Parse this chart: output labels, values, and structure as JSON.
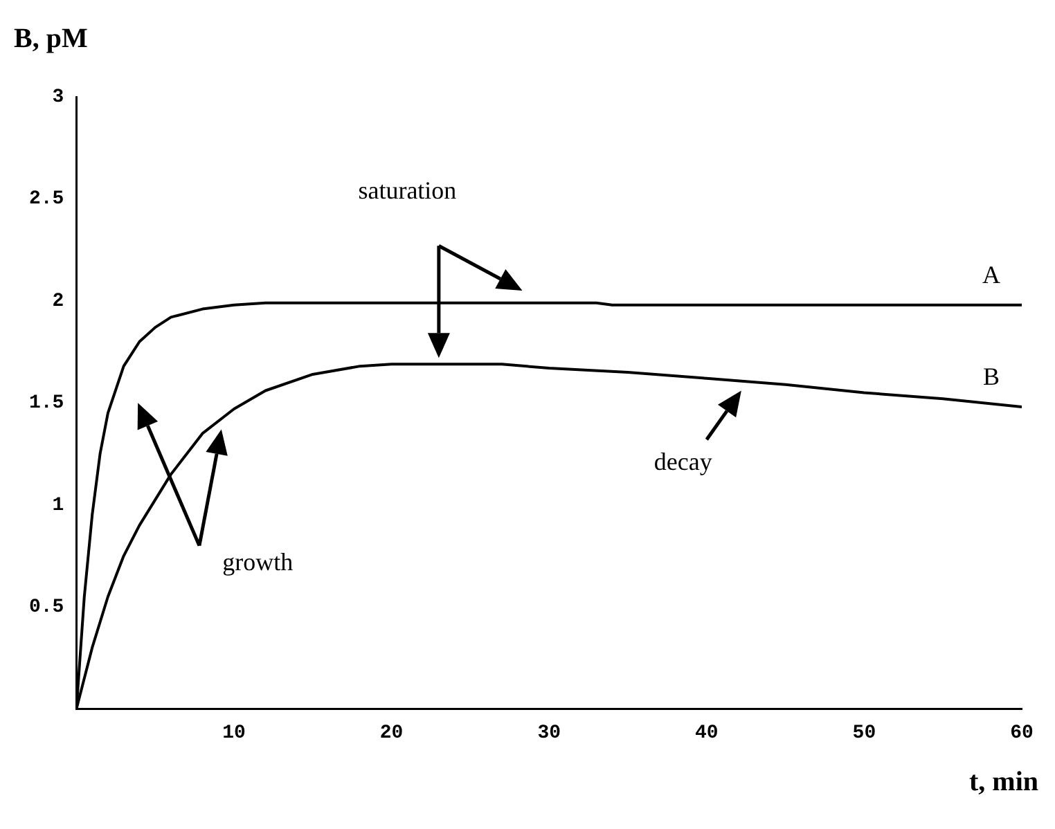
{
  "chart_data": {
    "type": "line",
    "xlabel": "t, min",
    "ylabel": "B, pM",
    "annotations": [
      "saturation",
      "growth",
      "decay"
    ],
    "xlim": [
      0,
      60
    ],
    "xticks": [
      10,
      20,
      30,
      40,
      50,
      60
    ],
    "ylim": [
      0,
      3
    ],
    "yticks": [
      0.5,
      1,
      1.5,
      2,
      2.5,
      3
    ],
    "grid": false,
    "legend": false,
    "marker": "none",
    "line_style": "solid",
    "series": [
      {
        "name": "A",
        "color": "#000000",
        "x": [
          0,
          0.5,
          1,
          1.5,
          2,
          3,
          4,
          5,
          6,
          8,
          10,
          12,
          20,
          33,
          34,
          45,
          60
        ],
        "values": [
          0,
          0.55,
          0.95,
          1.25,
          1.45,
          1.68,
          1.8,
          1.87,
          1.92,
          1.96,
          1.98,
          1.99,
          1.99,
          1.99,
          1.98,
          1.98,
          1.98
        ]
      },
      {
        "name": "B",
        "color": "#000000",
        "x": [
          0,
          1,
          2,
          3,
          4,
          6,
          8,
          10,
          12,
          15,
          18,
          20,
          27,
          30,
          35,
          40,
          45,
          50,
          55,
          60
        ],
        "values": [
          0,
          0.3,
          0.55,
          0.75,
          0.9,
          1.15,
          1.35,
          1.47,
          1.56,
          1.64,
          1.68,
          1.69,
          1.69,
          1.67,
          1.65,
          1.62,
          1.59,
          1.55,
          1.52,
          1.48
        ]
      }
    ]
  }
}
